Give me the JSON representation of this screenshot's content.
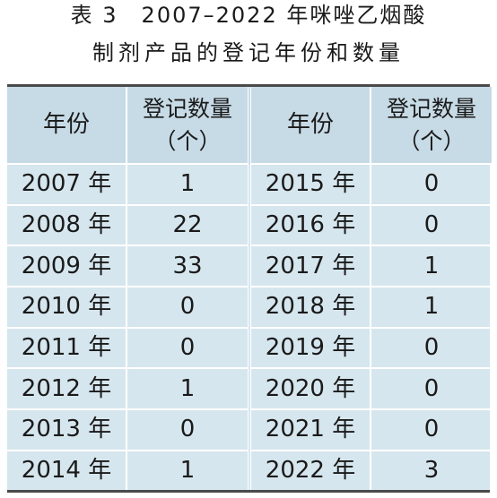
{
  "caption": {
    "line1": "表 3　2007–2022 年咪唑乙烟酸",
    "line2": "制剂产品的登记年份和数量"
  },
  "table": {
    "header": {
      "year": "年份",
      "count_line1": "登记数量",
      "count_line2": "（个）"
    },
    "left": [
      {
        "year": "2007 年",
        "count": "1"
      },
      {
        "year": "2008 年",
        "count": "22"
      },
      {
        "year": "2009 年",
        "count": "33"
      },
      {
        "year": "2010 年",
        "count": "0"
      },
      {
        "year": "2011 年",
        "count": "0"
      },
      {
        "year": "2012 年",
        "count": "1"
      },
      {
        "year": "2013 年",
        "count": "0"
      },
      {
        "year": "2014 年",
        "count": "1"
      }
    ],
    "right": [
      {
        "year": "2015 年",
        "count": "0"
      },
      {
        "year": "2016 年",
        "count": "0"
      },
      {
        "year": "2017 年",
        "count": "1"
      },
      {
        "year": "2018 年",
        "count": "1"
      },
      {
        "year": "2019 年",
        "count": "0"
      },
      {
        "year": "2020 年",
        "count": "0"
      },
      {
        "year": "2021 年",
        "count": "0"
      },
      {
        "year": "2022 年",
        "count": "3"
      }
    ]
  }
}
